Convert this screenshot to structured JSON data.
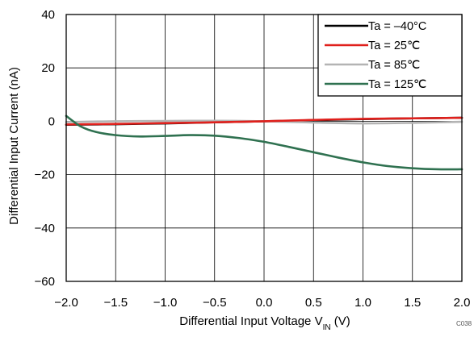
{
  "chart_data": {
    "type": "line",
    "xlabel": {
      "main": "Differential  Input Voltage V",
      "sub": "IN",
      "unit": " (V)"
    },
    "ylabel": "Differential Input Current (nA)",
    "xlim": [
      -2.0,
      2.0
    ],
    "ylim": [
      -60,
      40
    ],
    "xticks": [
      -2.0,
      -1.5,
      -1.0,
      -0.5,
      0.0,
      0.5,
      1.0,
      1.5,
      2.0
    ],
    "xtick_labels": [
      "−2.0",
      "−1.5",
      "−1.0",
      "−0.5",
      "0.0",
      "0.5",
      "1.0",
      "1.5",
      "2.0"
    ],
    "yticks": [
      40,
      20,
      0,
      -20,
      -40,
      -60
    ],
    "ytick_labels": [
      "40",
      "20",
      "0",
      "−20",
      "−40",
      "−60"
    ],
    "grid": true,
    "legend_position": "top-right",
    "code_label": "C038",
    "series": [
      {
        "name": "Ta = –40°C",
        "color": "#000000",
        "x": [
          -2.0,
          -1.5,
          -1.0,
          -0.5,
          0.0,
          0.5,
          1.0,
          1.5,
          2.0
        ],
        "y": [
          -1.3,
          -1.1,
          -0.8,
          -0.4,
          0.0,
          0.4,
          0.8,
          1.1,
          1.3
        ]
      },
      {
        "name": "Ta = 25℃",
        "color": "#e0201c",
        "x": [
          -2.0,
          -1.5,
          -1.0,
          -0.5,
          0.0,
          0.5,
          1.0,
          1.5,
          2.0
        ],
        "y": [
          -1.2,
          -1.0,
          -0.7,
          -0.4,
          0.0,
          0.5,
          0.9,
          1.1,
          1.3
        ]
      },
      {
        "name": "Ta = 85℃",
        "color": "#b4b4b4",
        "x": [
          -2.0,
          -1.5,
          -1.0,
          -0.5,
          0.0,
          0.5,
          1.0,
          1.5,
          2.0
        ],
        "y": [
          -0.3,
          0.0,
          0.1,
          0.2,
          0.0,
          -0.5,
          -0.8,
          -0.6,
          -0.2
        ]
      },
      {
        "name": "Ta = 125℃",
        "color": "#2f7150",
        "x": [
          -2.0,
          -1.85,
          -1.7,
          -1.5,
          -1.25,
          -1.0,
          -0.75,
          -0.5,
          -0.25,
          0.0,
          0.25,
          0.5,
          0.75,
          1.0,
          1.25,
          1.5,
          1.75,
          2.0
        ],
        "y": [
          2.0,
          -2.0,
          -4.0,
          -5.2,
          -5.7,
          -5.5,
          -5.2,
          -5.4,
          -6.3,
          -7.7,
          -9.6,
          -11.6,
          -13.6,
          -15.4,
          -16.8,
          -17.6,
          -18.0,
          -18.0
        ]
      }
    ]
  }
}
